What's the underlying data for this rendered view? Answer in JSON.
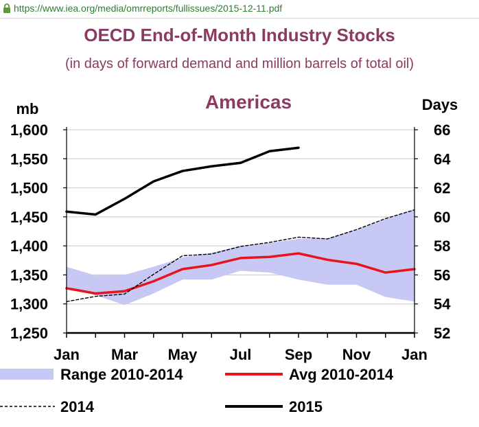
{
  "browser": {
    "url": "https://www.iea.org/media/omrreports/fullissues/2015-12-11.pdf"
  },
  "chart_data": {
    "type": "line",
    "title": "OECD End-of-Month Industry Stocks",
    "subtitle": "(in days of forward demand and million barrels of total oil)",
    "panel_title": "Americas",
    "ylabel_left": "mb",
    "ylabel_right": "Days",
    "categories": [
      "Jan",
      "Feb",
      "Mar",
      "Apr",
      "May",
      "Jun",
      "Jul",
      "Aug",
      "Sep",
      "Oct",
      "Nov",
      "Dec",
      "Jan"
    ],
    "x_tick_labels": [
      "Jan",
      "Mar",
      "May",
      "Jul",
      "Sep",
      "Nov",
      "Jan"
    ],
    "ylim_left": [
      1250,
      1600
    ],
    "yticks_left": [
      "1,250",
      "1,300",
      "1,350",
      "1,400",
      "1,450",
      "1,500",
      "1,550",
      "1,600"
    ],
    "ylim_right": [
      52,
      66
    ],
    "yticks_right": [
      "52",
      "54",
      "56",
      "58",
      "60",
      "62",
      "64",
      "66"
    ],
    "grid": true,
    "range": {
      "name": "Range 2010-2014",
      "color": "#c8c8f4",
      "low": [
        1330,
        1315,
        1298,
        1318,
        1342,
        1342,
        1357,
        1354,
        1342,
        1333,
        1333,
        1312,
        1304
      ],
      "high": [
        1364,
        1349,
        1350,
        1364,
        1380,
        1388,
        1400,
        1405,
        1412,
        1413,
        1427,
        1446,
        1463
      ]
    },
    "series": [
      {
        "name": "Avg 2010-2014",
        "color": "#e8131d",
        "style": "solid",
        "values": [
          1327,
          1318,
          1322,
          1339,
          1360,
          1367,
          1379,
          1381,
          1387,
          1376,
          1369,
          1354,
          1360
        ]
      },
      {
        "name": "2014",
        "color": "#000000",
        "style": "dashed",
        "values": [
          1304,
          1313,
          1317,
          1351,
          1383,
          1386,
          1399,
          1406,
          1415,
          1412,
          1428,
          1447,
          1462
        ]
      },
      {
        "name": "2015",
        "color": "#000000",
        "style": "solid",
        "values": [
          1459,
          1454,
          1481,
          1511,
          1529,
          1537,
          1543,
          1563,
          1569,
          null,
          null,
          null,
          null
        ]
      }
    ],
    "legend": [
      {
        "label": "Range 2010-2014",
        "kind": "band"
      },
      {
        "label": "Avg 2010-2014",
        "kind": "red-line"
      },
      {
        "label": "2014",
        "kind": "dashed-line"
      },
      {
        "label": "2015",
        "kind": "black-line"
      }
    ]
  }
}
